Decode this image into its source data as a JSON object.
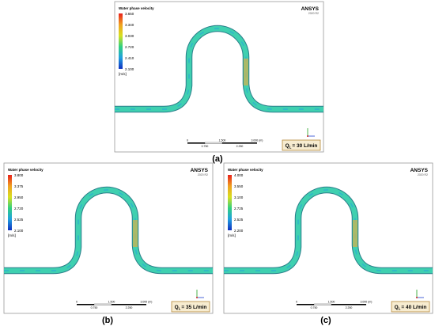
{
  "panels": [
    {
      "label": "(a)",
      "legend_title": "Water phase velocity",
      "legend_ticks": [
        "3.650",
        "3.340",
        "3.030",
        "2.720",
        "2.410",
        "2.100"
      ],
      "legend_unit": "[m/s]",
      "brand": "ANSYS",
      "version": "2020 R2",
      "scale_top": [
        "0",
        "1.500",
        "3.000 (m)"
      ],
      "scale_bottom": [
        "0.750",
        "2.250"
      ],
      "flow": {
        "symbol": "Q",
        "subscript": "L",
        "text": "= 30 L/min"
      }
    },
    {
      "label": "(b)",
      "legend_title": "Water phase velocity",
      "legend_ticks": [
        "3.800",
        "3.375",
        "2.950",
        "2.720",
        "2.525",
        "2.100"
      ],
      "legend_unit": "[m/s]",
      "brand": "ANSYS",
      "version": "2020 R2",
      "scale_top": [
        "0",
        "1.500",
        "3.000 (m)"
      ],
      "scale_bottom": [
        "0.750",
        "2.250"
      ],
      "flow": {
        "symbol": "Q",
        "subscript": "L",
        "text": "= 35 L/min"
      }
    },
    {
      "label": "(c)",
      "legend_title": "Water phase velocity",
      "legend_ticks": [
        "4.000",
        "3.550",
        "3.100",
        "2.725",
        "2.525",
        "2.200"
      ],
      "legend_unit": "[m/s]",
      "brand": "ANSYS",
      "version": "2020 R2",
      "scale_top": [
        "0",
        "1.500",
        "3.000 (m)"
      ],
      "scale_bottom": [
        "0.750",
        "2.250"
      ],
      "flow": {
        "symbol": "Q",
        "subscript": "L",
        "text": "= 40 L/min"
      }
    }
  ]
}
